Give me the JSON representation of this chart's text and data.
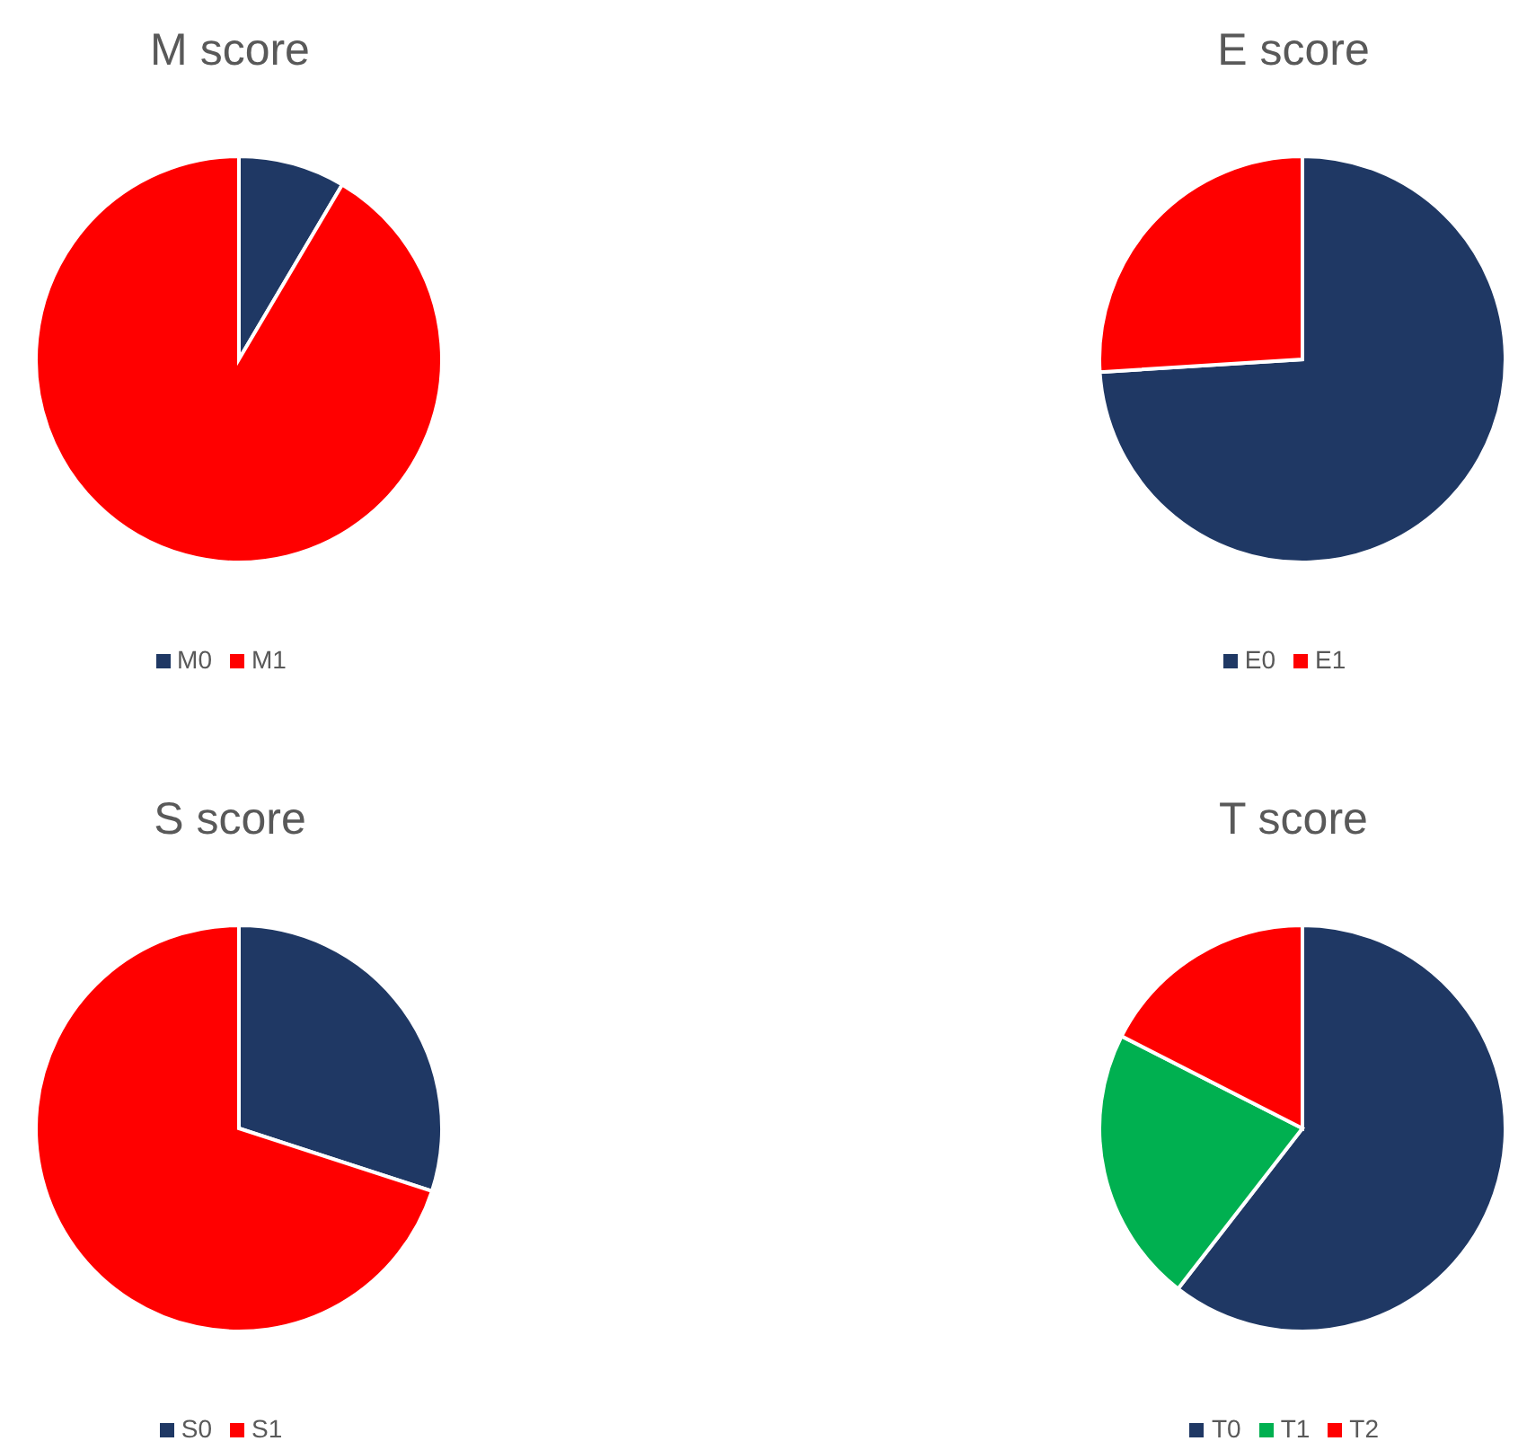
{
  "chart_data": [
    {
      "type": "pie",
      "title": "M score",
      "categories": [
        "M0",
        "M1"
      ],
      "values": [
        8.5,
        91.5
      ],
      "colors": [
        "#1f3864",
        "#ff0000"
      ],
      "legend": "bottom"
    },
    {
      "type": "pie",
      "title": "E score",
      "categories": [
        "E0",
        "E1"
      ],
      "values": [
        74,
        26
      ],
      "colors": [
        "#1f3864",
        "#ff0000"
      ],
      "legend": "bottom"
    },
    {
      "type": "pie",
      "title": "S score",
      "categories": [
        "S0",
        "S1"
      ],
      "values": [
        30,
        70
      ],
      "colors": [
        "#1f3864",
        "#ff0000"
      ],
      "legend": "bottom"
    },
    {
      "type": "pie",
      "title": "T score",
      "categories": [
        "T0",
        "T1",
        "T2"
      ],
      "values": [
        60.5,
        22,
        17.5
      ],
      "colors": [
        "#1f3864",
        "#00b050",
        "#ff0000"
      ],
      "legend": "bottom"
    }
  ]
}
